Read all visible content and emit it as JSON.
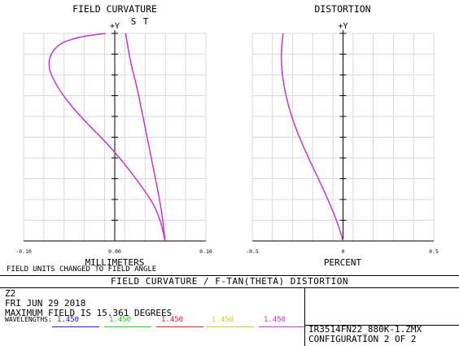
{
  "chart_data": [
    {
      "type": "line",
      "title": "FIELD CURVATURE",
      "y_axis_label": "+Y",
      "xlabel": "MILLIMETERS",
      "x_ticks": [
        "-0.10",
        "0.00",
        "0.10"
      ],
      "xlim": [
        -0.1,
        0.1
      ],
      "ylim": [
        0,
        15.361
      ],
      "grid": true,
      "series_markers": [
        "S",
        "T"
      ],
      "series": [
        {
          "name": "S",
          "color": "#cc33cc",
          "x": [
            0.055,
            0.053,
            0.048,
            0.042,
            0.036,
            0.03,
            0.024,
            0.018,
            0.014,
            0.012
          ],
          "y": [
            0,
            1.5,
            3.5,
            5.5,
            7.5,
            9.5,
            11.5,
            13.0,
            14.5,
            15.361
          ]
        },
        {
          "name": "T",
          "color": "#cc33cc",
          "x": [
            0.055,
            0.05,
            0.025,
            -0.005,
            -0.035,
            -0.06,
            -0.075,
            -0.065,
            -0.04,
            -0.01
          ],
          "y": [
            0,
            2.0,
            4.5,
            7.0,
            9.0,
            11.0,
            13.0,
            14.5,
            15.1,
            15.361
          ]
        }
      ]
    },
    {
      "type": "line",
      "title": "DISTORTION",
      "y_axis_label": "+Y",
      "xlabel": "PERCENT",
      "x_ticks": [
        "-0.5",
        "0",
        "0.5"
      ],
      "xlim": [
        -0.5,
        0.5
      ],
      "ylim": [
        0,
        15.361
      ],
      "grid": true,
      "series": [
        {
          "color": "#cc33cc",
          "x": [
            0,
            -0.02,
            -0.08,
            -0.15,
            -0.22,
            -0.28,
            -0.32,
            -0.34,
            -0.34,
            -0.33
          ],
          "y": [
            0,
            1.0,
            3.0,
            5.0,
            7.0,
            9.0,
            11.0,
            12.8,
            14.3,
            15.361
          ]
        }
      ]
    }
  ],
  "note": "FIELD UNITS CHANGED TO FIELD ANGLE",
  "footer": {
    "title": "FIELD CURVATURE / F-TAN(THETA) DISTORTION",
    "lines": [
      "Z2",
      "FRI JUN 29 2018",
      "MAXIMUM FIELD IS 15.361 DEGREES"
    ],
    "wavelengths_label": "WAVELENGTHS:",
    "wavelengths": [
      {
        "value": "1.450",
        "color": "#2222cc"
      },
      {
        "value": "1.450",
        "color": "#22cc22"
      },
      {
        "value": "1.450",
        "color": "#dd2222"
      },
      {
        "value": "1.450",
        "color": "#cccc33"
      },
      {
        "value": "1.450",
        "color": "#cc33cc"
      }
    ],
    "file": "IR3514FN22_880K-1.ZMX",
    "config": "CONFIGURATION 2 OF 2"
  }
}
